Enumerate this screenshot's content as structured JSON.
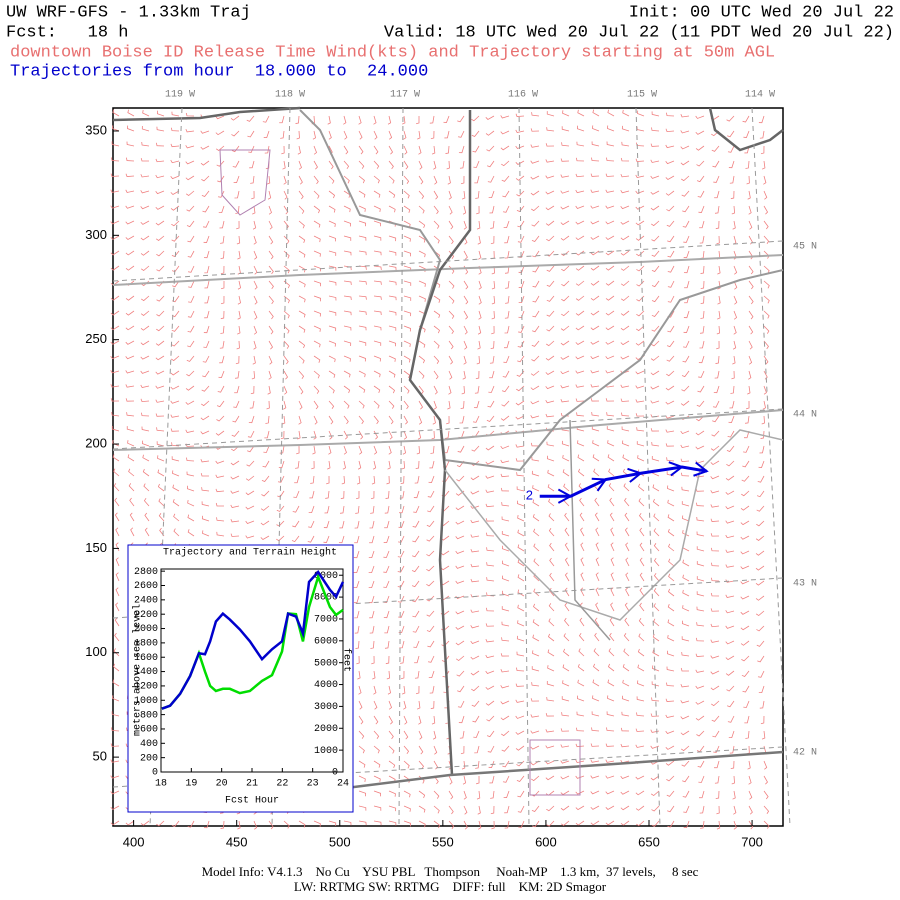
{
  "header": {
    "title": "UW WRF-GFS - 1.33km Traj",
    "init": "Init: 00 UTC Wed 20 Jul 22",
    "fcst": "Fcst:   18 h",
    "valid": "Valid: 18 UTC Wed 20 Jul 22 (11 PDT Wed 20 Jul 22)",
    "subtitle": "downtown Boise ID Release Time Wind(kts) and Trajectory starting at 50m AGL",
    "traj_range": "Trajectories from hour  18.000 to  24.000"
  },
  "map": {
    "xlim": [
      390,
      715
    ],
    "ylim": [
      17,
      361
    ],
    "xticks": [
      400,
      450,
      500,
      550,
      600,
      650,
      700
    ],
    "yticks": [
      50,
      100,
      150,
      200,
      250,
      300,
      350
    ],
    "lon_labels": [
      "119 W",
      "118 W",
      "117 W",
      "116 W",
      "115 W",
      "114 W"
    ],
    "lat_labels": [
      "45 N",
      "44 N",
      "43 N",
      "42 N"
    ],
    "trajectory": {
      "label": "2",
      "color": "#0000dd",
      "x": [
        597,
        612,
        629,
        646,
        666,
        678
      ],
      "y": [
        175,
        175,
        183,
        186,
        189,
        187
      ]
    }
  },
  "chart_data": {
    "type": "line",
    "title": "Trajectory and Terrain Height",
    "x_label": "Fcst Hour",
    "y_label": "meters above sea level",
    "y2_label": "feet",
    "x": [
      18.03,
      18.3,
      18.63,
      18.96,
      19.25,
      19.45,
      19.62,
      19.81,
      20.04,
      20.27,
      20.6,
      20.93,
      21.33,
      21.66,
      21.99,
      22.19,
      22.45,
      22.68,
      22.88,
      23.18,
      23.57,
      23.77,
      24.0
    ],
    "series": [
      {
        "name": "Terrain",
        "color": "#00dd00",
        "values": [
          883,
          925,
          1090,
          1339,
          1656,
          1400,
          1200,
          1130,
          1160,
          1160,
          1100,
          1130,
          1270,
          1350,
          1680,
          2210,
          2200,
          1820,
          2300,
          2720,
          2300,
          2190,
          2260
        ]
      },
      {
        "name": "Trajectory",
        "color": "#0000cc",
        "values": [
          883,
          925,
          1090,
          1339,
          1656,
          1642,
          1822,
          2098,
          2208,
          2125,
          1987,
          1822,
          1573,
          1711,
          1822,
          2208,
          2167,
          1932,
          2650,
          2788,
          2539,
          2443,
          2650
        ]
      }
    ],
    "xlim": [
      18,
      24
    ],
    "xticks": [
      18,
      19,
      20,
      21,
      22,
      23,
      24
    ],
    "ylim": [
      0,
      2830
    ],
    "yticks": [
      0,
      200,
      400,
      600,
      800,
      1000,
      1200,
      1400,
      1600,
      1800,
      2000,
      2200,
      2400,
      2600,
      2800
    ],
    "y2lim": [
      0,
      9285
    ],
    "y2ticks": [
      0,
      1000,
      2000,
      3000,
      4000,
      5000,
      6000,
      7000,
      8000,
      9000
    ]
  },
  "footer": {
    "line1": "Model Info: V4.1.3    No Cu    YSU PBL   Thompson     Noah-MP    1.3 km,  37 levels,     8 sec",
    "line2": "LW: RRTMG SW: RRTMG    DIFF: full    KM: 2D Smagor"
  }
}
